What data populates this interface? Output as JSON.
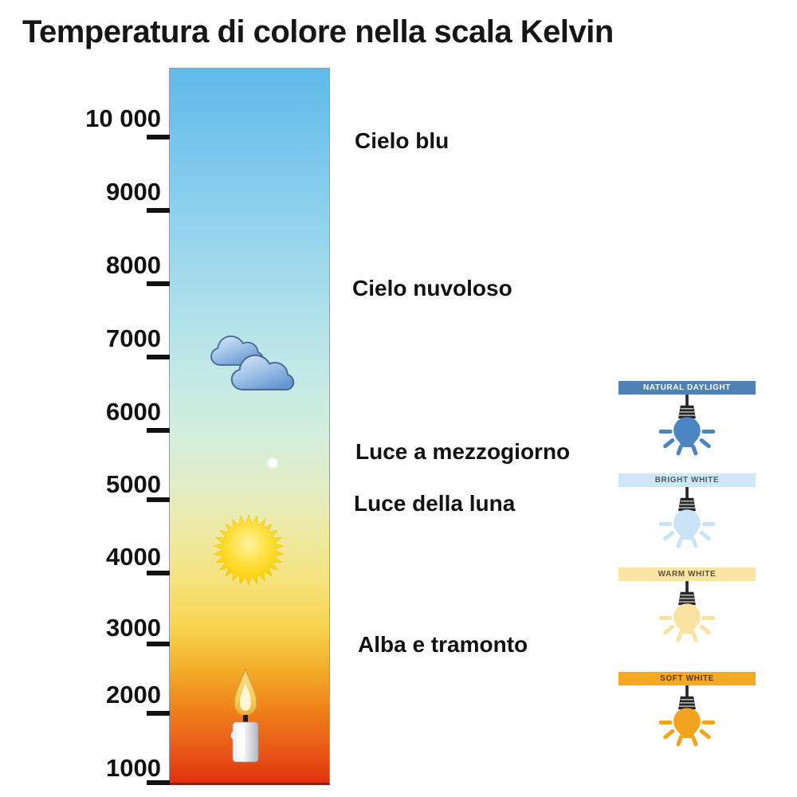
{
  "title": "Temperatura di colore nella scala Kelvin",
  "scale": {
    "unit": "Kelvin",
    "tick_labels": [
      "10 000",
      "9000",
      "8000",
      "7000",
      "6000",
      "5000",
      "4000",
      "3000",
      "2000",
      "1000"
    ]
  },
  "annotations": {
    "cielo_blu": "Cielo blu",
    "cielo_nuvoloso": "Cielo nuvoloso",
    "mezzogiorno": "Luce a mezzogiorno",
    "luna": "Luce della luna",
    "alba": "Alba e tramonto"
  },
  "bar_icons": [
    "clouds-icon",
    "moon-dot-icon",
    "sun-icon",
    "candle-icon"
  ],
  "bar_gradient": [
    "#60bae9",
    "#74c4ec",
    "#92d3ee",
    "#abdfeb",
    "#c2e9e6",
    "#d2eedd",
    "#e2eec6",
    "#eeeaa4",
    "#f5e37c",
    "#f8d44e",
    "#f3ab28",
    "#ef7f1b",
    "#e95716",
    "#e03210"
  ],
  "bulb_cards": [
    {
      "label": "NATURAL DAYLIGHT",
      "header_bg": "#4e81b4",
      "header_text": "#ffffff",
      "bulb_color": "#4b86c2"
    },
    {
      "label": "BRIGHT WHITE",
      "header_bg": "#cfe8f9",
      "header_text": "#4e5a64",
      "bulb_color": "#c9e3f7"
    },
    {
      "label": "WARM WHITE",
      "header_bg": "#fae5a4",
      "header_text": "#5c5138",
      "bulb_color": "#fae3a2"
    },
    {
      "label": "SOFT WHITE",
      "header_bg": "#f7a823",
      "header_text": "#513e17",
      "bulb_color": "#f3a41f"
    }
  ]
}
